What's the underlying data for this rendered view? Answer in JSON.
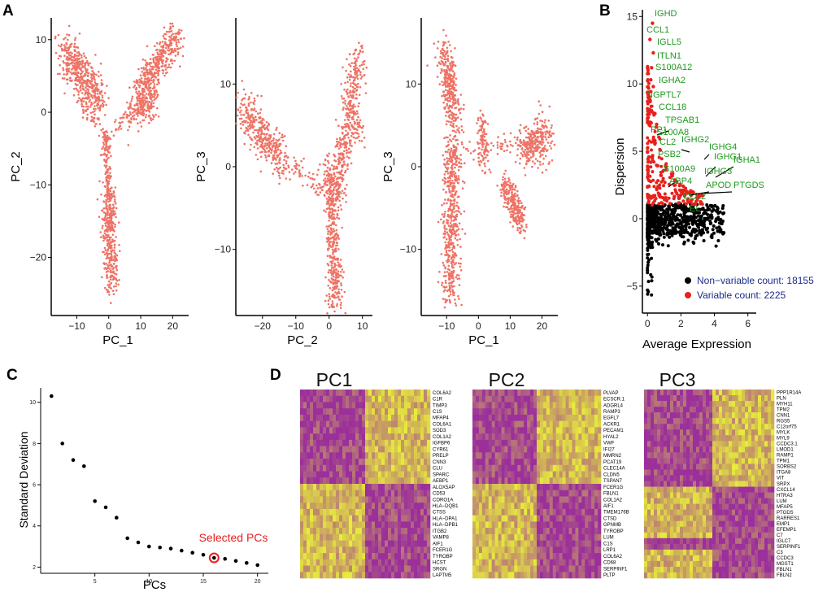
{
  "panel_labels": {
    "a": "A",
    "b": "B",
    "c": "C",
    "d": "D"
  },
  "colors": {
    "pca_points": "#ee7366",
    "variable": "#e8201b",
    "nonvariable": "#000000",
    "gene_label": "#1f9a1f",
    "legend_text": "#1a2a8a",
    "heat_low": "#9b2f9b",
    "heat_high": "#e8ee3a",
    "highlight": "#e8201b"
  },
  "chart_data": [
    {
      "id": "A1",
      "type": "scatter",
      "xlabel": "PC_1",
      "ylabel": "PC_2",
      "xlim": [
        -18,
        25
      ],
      "ylim": [
        -28,
        13
      ],
      "xticks": [
        -10,
        0,
        10,
        20
      ],
      "yticks": [
        -20,
        -10,
        0,
        10
      ],
      "clusters": [
        {
          "x0": -14,
          "y0": 8.8,
          "x1": -3,
          "y1": 1.5,
          "w": 1.6,
          "n": 450
        },
        {
          "x0": 9,
          "y0": 2.5,
          "x1": 21,
          "y1": 10.5,
          "w": 1.4,
          "n": 380
        },
        {
          "x0": 7,
          "y0": -0.5,
          "x1": 14,
          "y1": 1.8,
          "w": 1.2,
          "n": 180
        },
        {
          "x0": -1,
          "y0": -3,
          "x1": 0,
          "y1": -12,
          "w": 0.6,
          "n": 120
        },
        {
          "x0": 0,
          "y0": -11,
          "x1": 0.8,
          "y1": -24,
          "w": 1.1,
          "n": 350
        },
        {
          "x0": -10,
          "y0": 2,
          "x1": -1,
          "y1": -3,
          "w": 0.6,
          "n": 40
        },
        {
          "x0": 1,
          "y0": -3,
          "x1": 8,
          "y1": 1,
          "w": 0.6,
          "n": 30
        }
      ]
    },
    {
      "id": "A2",
      "type": "scatter",
      "xlabel": "PC_2",
      "ylabel": "PC_3",
      "xlim": [
        -28,
        13
      ],
      "ylim": [
        -18,
        18
      ],
      "xticks": [
        -20,
        -10,
        0,
        10
      ],
      "yticks": [
        -10,
        0,
        10
      ],
      "clusters": [
        {
          "x0": -26,
          "y0": 7,
          "x1": -14,
          "y1": 0.5,
          "w": 1.4,
          "n": 360
        },
        {
          "x0": 2,
          "y0": -4,
          "x1": 9,
          "y1": 14,
          "w": 1.2,
          "n": 420
        },
        {
          "x0": 0,
          "y0": 0,
          "x1": 2,
          "y1": -16.5,
          "w": 1.1,
          "n": 420
        },
        {
          "x0": -14,
          "y0": 1,
          "x1": -1,
          "y1": -3,
          "w": 0.7,
          "n": 60
        },
        {
          "x0": 8,
          "y0": 6,
          "x1": 10,
          "y1": 3,
          "w": 0.6,
          "n": 30
        }
      ]
    },
    {
      "id": "A3",
      "type": "scatter",
      "xlabel": "PC_1",
      "ylabel": "PC_3",
      "xlim": [
        -18,
        25
      ],
      "ylim": [
        -18,
        18
      ],
      "xticks": [
        -10,
        0,
        10,
        20
      ],
      "yticks": [
        -10,
        0,
        10
      ],
      "clusters": [
        {
          "x0": -11,
          "y0": 14,
          "x1": -7,
          "y1": 5,
          "w": 1.3,
          "n": 320
        },
        {
          "x0": -8,
          "y0": 3,
          "x1": -9,
          "y1": -16.5,
          "w": 1.4,
          "n": 500
        },
        {
          "x0": 14,
          "y0": 2.5,
          "x1": 22,
          "y1": 3.5,
          "w": 1.5,
          "n": 300
        },
        {
          "x0": 8,
          "y0": -2,
          "x1": 14,
          "y1": -7,
          "w": 1.0,
          "n": 260
        },
        {
          "x0": 1,
          "y0": 6,
          "x1": 2,
          "y1": 0,
          "w": 0.8,
          "n": 90
        },
        {
          "x0": -8,
          "y0": 1,
          "x1": 12,
          "y1": 3,
          "w": 0.6,
          "n": 60
        }
      ]
    },
    {
      "id": "B",
      "type": "scatter",
      "xlabel": "Average Expression",
      "ylabel": "Dispersion",
      "xlim": [
        -0.3,
        6.5
      ],
      "ylim": [
        -7,
        15.5
      ],
      "xticks": [
        0,
        2,
        4,
        6
      ],
      "yticks": [
        -5,
        0,
        5,
        10,
        15
      ],
      "legend": [
        {
          "label": "Non−variable count: 18155",
          "color": "#000000"
        },
        {
          "label": "Variable count: 2225",
          "color": "#e8201b"
        }
      ],
      "gene_labels": [
        "IGHD",
        "CCL1",
        "IGLL5",
        "ITLN1",
        "S100A12",
        "IGHA2",
        "NGPTL7",
        "CCL18",
        "TPSAB1",
        "S100A8",
        "PP1",
        "CL2",
        "IGHG2",
        "IGHG4",
        "IGHG1",
        "IGHA1",
        "PSB2",
        "S100A9",
        "IGHG3",
        "ABP4",
        "APOD",
        "PTGDS",
        "CCL2",
        "EL"
      ]
    },
    {
      "id": "C",
      "type": "scatter",
      "xlabel": "PCs",
      "ylabel": "Standard Deviation",
      "xlim": [
        0,
        21
      ],
      "ylim": [
        1.7,
        10.7
      ],
      "xticks": [
        5,
        10,
        15,
        20
      ],
      "yticks": [
        2,
        4,
        6,
        8,
        10
      ],
      "x": [
        1,
        2,
        3,
        4,
        5,
        6,
        7,
        8,
        9,
        10,
        11,
        12,
        13,
        14,
        15,
        16,
        17,
        18,
        19,
        20
      ],
      "values": [
        10.3,
        8.0,
        7.2,
        6.9,
        5.2,
        4.9,
        4.4,
        3.4,
        3.2,
        3.0,
        2.95,
        2.9,
        2.8,
        2.7,
        2.6,
        2.45,
        2.4,
        2.3,
        2.2,
        2.1
      ],
      "highlight_index": 15,
      "annotation": "Selected PCs"
    },
    {
      "id": "D",
      "type": "heatmap",
      "panels": [
        {
          "title": "PC1",
          "genes": [
            "COL6A2",
            "C1R",
            "TIMP3",
            "C1S",
            "MFAP4",
            "COL6A1",
            "SOD3",
            "COL1A2",
            "IGFBP6",
            "CYR61",
            "PRELP",
            "CNN3",
            "CLU",
            "SPARC",
            "AEBP1",
            "ALOX5AP",
            "CD53",
            "CORO1A",
            "HLA−DQB1",
            "CTSS",
            "HLA−DPA1",
            "HLA−DPB1",
            "ITGB2",
            "VAMP8",
            "AIF1",
            "FCER1G",
            "TYROBP",
            "HCST",
            "SRGN",
            "LAPTM5"
          ]
        },
        {
          "title": "PC2",
          "genes": [
            "PLVAP",
            "ECSCR.1",
            "ADGRL4",
            "RAMP3",
            "EGFL7",
            "ACKR1",
            "PECAM1",
            "HYAL2",
            "VWF",
            "IFI27",
            "MMRN2",
            "PCAT19",
            "CLEC14A",
            "CLDN5",
            "TSPAN7",
            "FCER1G",
            "FBLN1",
            "COL1A2",
            "AIF1",
            "TMEM176B",
            "CTSD",
            "GPNMB",
            "TYROBP",
            "LUM",
            "C1S",
            "LRP1",
            "COL6A2",
            "CD68",
            "SERPINF1",
            "PLTP"
          ]
        },
        {
          "title": "PC3",
          "genes": [
            "PPP1R14A",
            "PLN",
            "MYH11",
            "TPM2",
            "CNN1",
            "RGS5",
            "C12orf75",
            "MYLK",
            "MYL9",
            "CCDC3.1",
            "LMOD1",
            "RAMP1",
            "TPM1",
            "SORBS2",
            "ITGA8",
            "VIT",
            "SRPX",
            "CXCL14",
            "HTRA3",
            "LUM",
            "MFAP5",
            "PTGDS",
            "RARRES1",
            "EMP1",
            "EFEMP1",
            "C7",
            "IGLC7",
            "SERPINF1",
            "C3",
            "CCDC3",
            "MGST1",
            "FBLN1",
            "FBLN2"
          ]
        }
      ]
    }
  ]
}
